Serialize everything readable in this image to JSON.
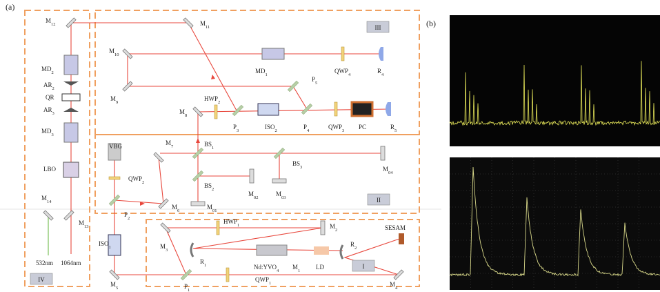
{
  "panel_labels": [
    "(a)",
    "(b)"
  ],
  "components": [
    {
      "text": "M",
      "sub": "12"
    },
    {
      "text": "M",
      "sub": "11"
    },
    {
      "text": "MD",
      "sub": "2"
    },
    {
      "text": "AR",
      "sub": "2"
    },
    {
      "text": "QR"
    },
    {
      "text": "AR",
      "sub": "3"
    },
    {
      "text": "MD",
      "sub": "3"
    },
    {
      "text": "LBO"
    },
    {
      "text": "M",
      "sub": "10"
    },
    {
      "text": "M",
      "sub": "9"
    },
    {
      "text": "MD",
      "sub": "1"
    },
    {
      "text": "QWP",
      "sub": "4"
    },
    {
      "text": "R",
      "sub": "4"
    },
    {
      "text": "P",
      "sub": "5"
    },
    {
      "text": "HWP",
      "sub": "2"
    },
    {
      "text": "M",
      "sub": "8"
    },
    {
      "text": "P",
      "sub": "3"
    },
    {
      "text": "ISO",
      "sub": "2"
    },
    {
      "text": "P",
      "sub": "4"
    },
    {
      "text": "QWP",
      "sub": "3"
    },
    {
      "text": "PC"
    },
    {
      "text": "R",
      "sub": "5"
    },
    {
      "text": "VBG"
    },
    {
      "text": "M",
      "sub": "7"
    },
    {
      "text": "BS",
      "sub": "1"
    },
    {
      "text": "BS",
      "sub": "3"
    },
    {
      "text": "M",
      "sub": "04"
    },
    {
      "text": "QWP",
      "sub": "2"
    },
    {
      "text": "BS",
      "sub": "2"
    },
    {
      "text": "M",
      "sub": "02"
    },
    {
      "text": "M",
      "sub": "03"
    },
    {
      "text": "M",
      "sub": "14"
    },
    {
      "text": "M",
      "sub": "13"
    },
    {
      "text": "P",
      "sub": "2"
    },
    {
      "text": "M",
      "sub": "6"
    },
    {
      "text": "M",
      "sub": "01"
    },
    {
      "text": "M",
      "sub": "3"
    },
    {
      "text": "HWP",
      "sub": "1"
    },
    {
      "text": "M",
      "sub": "2"
    },
    {
      "text": "SESAM"
    },
    {
      "text": "ISO",
      "sub": "1"
    },
    {
      "text": "R",
      "sub": "1"
    },
    {
      "text": "Nd:YVO",
      "sub": "4"
    },
    {
      "text": "M",
      "sub": "1"
    },
    {
      "text": "LD"
    },
    {
      "text": "R",
      "sub": "2"
    },
    {
      "text": "M",
      "sub": "5"
    },
    {
      "text": "P",
      "sub": "1"
    },
    {
      "text": "QWP",
      "sub": "1"
    },
    {
      "text": "M",
      "sub": "4"
    }
  ],
  "sections": [
    "I",
    "II",
    "III",
    "IV"
  ],
  "wavelengths": [
    "532nm",
    "1064nm"
  ]
}
